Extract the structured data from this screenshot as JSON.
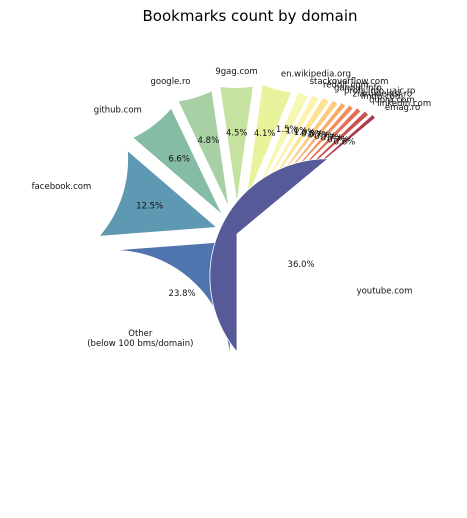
{
  "chart_data": {
    "type": "pie",
    "title": "Bookmarks count by domain",
    "slices": [
      {
        "label": "Other\n(below 100 bms/domain)",
        "percent_label": "23.8%",
        "value": 23.8,
        "color": "#4f74ae"
      },
      {
        "label": "facebook.com",
        "percent_label": "12.5%",
        "value": 12.5,
        "color": "#5e98b2"
      },
      {
        "label": "github.com",
        "percent_label": "6.6%",
        "value": 6.6,
        "color": "#84bca4"
      },
      {
        "label": "google.ro",
        "percent_label": "4.8%",
        "value": 4.8,
        "color": "#a7d0a4"
      },
      {
        "label": "9gag.com",
        "percent_label": "4.5%",
        "value": 4.5,
        "color": "#c6e2a0"
      },
      {
        "label": "en.wikipedia.org",
        "percent_label": "4.1%",
        "value": 4.1,
        "color": "#e8f39c"
      },
      {
        "label": "stackoverflow.com",
        "percent_label": "1.5%",
        "value": 1.5,
        "color": "#f7f8b0"
      },
      {
        "label": "reddit.com",
        "percent_label": "1.0%",
        "value": 1.0,
        "color": "#fef3ad"
      },
      {
        "label": "gandul.info",
        "percent_label": "1.0%",
        "value": 1.0,
        "color": "#fde291"
      },
      {
        "label": "profs.info.uaic.ro",
        "percent_label": "0.8%",
        "value": 0.8,
        "color": "#fcca7b"
      },
      {
        "label": "ziaruldeiasi.ro",
        "percent_label": "0.7%",
        "value": 0.7,
        "color": "#f9ab66"
      },
      {
        "label": "imdb.com",
        "percent_label": "0.7%",
        "value": 0.7,
        "color": "#f28c5a"
      },
      {
        "label": "quora.com",
        "percent_label": "0.7%",
        "value": 0.7,
        "color": "#e36d55"
      },
      {
        "label": "linkedin.com",
        "percent_label": "0.7%",
        "value": 0.7,
        "color": "#c9514e"
      },
      {
        "label": "emag.ro",
        "percent_label": "0.6%",
        "value": 0.6,
        "color": "#a83a4f"
      },
      {
        "label": "youtube.com",
        "percent_label": "36.0%",
        "value": 36.0,
        "color": "#575a99"
      }
    ]
  }
}
